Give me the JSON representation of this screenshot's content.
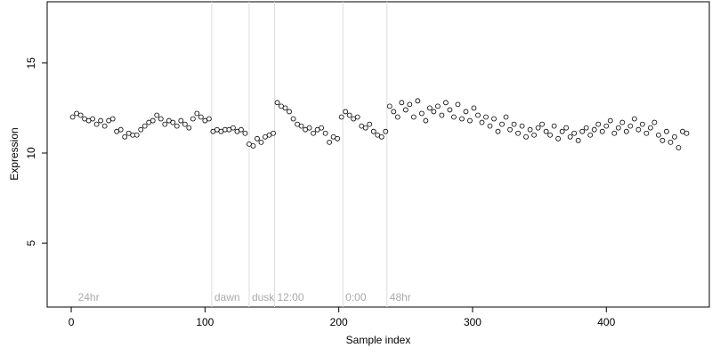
{
  "chart_data": {
    "type": "scatter",
    "xlabel": "Sample index",
    "ylabel": "Expression",
    "xlim": [
      -18,
      477
    ],
    "ylim": [
      1.45,
      18.4
    ],
    "xticks": [
      0,
      100,
      200,
      300,
      400
    ],
    "yticks": [
      5,
      10,
      15
    ],
    "annotations": [
      {
        "x": 3,
        "text": "24hr",
        "line": false
      },
      {
        "x": 105,
        "text": "dawn",
        "line": true
      },
      {
        "x": 133,
        "text": "dusk",
        "line": true
      },
      {
        "x": 152,
        "text": "12:00",
        "line": true
      },
      {
        "x": 203,
        "text": "0:00",
        "line": true
      },
      {
        "x": 236,
        "text": "48hr",
        "line": true
      }
    ],
    "series": [
      {
        "color": "#ffffff",
        "x": [
          1,
          4,
          7,
          10,
          13,
          16,
          19,
          22,
          25,
          28,
          31,
          34,
          37,
          40,
          43,
          46,
          49,
          52,
          55,
          58,
          61,
          64,
          67,
          70,
          73,
          76,
          79,
          82,
          85,
          88,
          91,
          94,
          97,
          100,
          103,
          106,
          109,
          112,
          115,
          118,
          121,
          124,
          127,
          130,
          133,
          136,
          139,
          142,
          145,
          148,
          151,
          154,
          157,
          160,
          163,
          166,
          169,
          172,
          175,
          178,
          181,
          184,
          187,
          190,
          193,
          196,
          199,
          202,
          205,
          208,
          211,
          214,
          217,
          220,
          223,
          226,
          229,
          232,
          235,
          238,
          241,
          244,
          247,
          250,
          253,
          256,
          259,
          262,
          265,
          268,
          271,
          274,
          277,
          280,
          283,
          286,
          289,
          292,
          295,
          298,
          301,
          304,
          307,
          310,
          313,
          316,
          319,
          322,
          325,
          328,
          331,
          334,
          337,
          340,
          343,
          346,
          349,
          352,
          355,
          358,
          361,
          364,
          367,
          370,
          373,
          376,
          379,
          382,
          385,
          388,
          391,
          394,
          397,
          400,
          403,
          406,
          409,
          412,
          415,
          418,
          421,
          424,
          427,
          430,
          433,
          436,
          439,
          442,
          445,
          448,
          451,
          454,
          457,
          460
        ],
        "values": [
          12.0,
          12.2,
          12.1,
          11.9,
          11.8,
          11.9,
          11.6,
          11.8,
          11.5,
          11.8,
          11.9,
          11.2,
          11.3,
          10.9,
          11.1,
          11.0,
          11.0,
          11.3,
          11.5,
          11.7,
          11.8,
          12.1,
          11.9,
          11.6,
          11.8,
          11.7,
          11.5,
          11.8,
          11.6,
          11.4,
          11.9,
          12.2,
          12.0,
          11.8,
          11.9,
          11.2,
          11.3,
          11.2,
          11.3,
          11.3,
          11.4,
          11.2,
          11.3,
          11.1,
          10.5,
          10.4,
          10.8,
          10.6,
          10.9,
          11.0,
          11.1,
          12.8,
          12.6,
          12.5,
          12.3,
          11.9,
          11.6,
          11.5,
          11.3,
          11.4,
          11.1,
          11.3,
          11.4,
          11.1,
          10.6,
          10.9,
          10.8,
          12.0,
          12.3,
          12.1,
          11.9,
          12.0,
          11.5,
          11.4,
          11.6,
          11.2,
          11.0,
          10.9,
          11.2,
          12.6,
          12.3,
          12.0,
          12.8,
          12.4,
          12.7,
          12.0,
          12.9,
          12.2,
          11.8,
          12.5,
          12.3,
          12.6,
          12.1,
          12.8,
          12.4,
          12.0,
          12.7,
          11.9,
          12.3,
          11.8,
          12.5,
          12.1,
          11.7,
          12.0,
          11.5,
          11.9,
          11.2,
          11.6,
          12.0,
          11.3,
          11.6,
          11.1,
          11.5,
          10.9,
          11.3,
          11.0,
          11.4,
          11.6,
          11.2,
          11.0,
          11.5,
          10.8,
          11.2,
          11.4,
          10.9,
          11.1,
          10.7,
          11.2,
          11.4,
          11.0,
          11.3,
          11.6,
          11.2,
          11.5,
          11.8,
          11.1,
          11.4,
          11.7,
          11.2,
          11.5,
          11.9,
          11.3,
          11.6,
          11.1,
          11.4,
          11.7,
          11.0,
          10.7,
          11.2,
          10.6,
          10.9,
          10.3,
          11.2,
          11.1
        ]
      }
    ]
  }
}
